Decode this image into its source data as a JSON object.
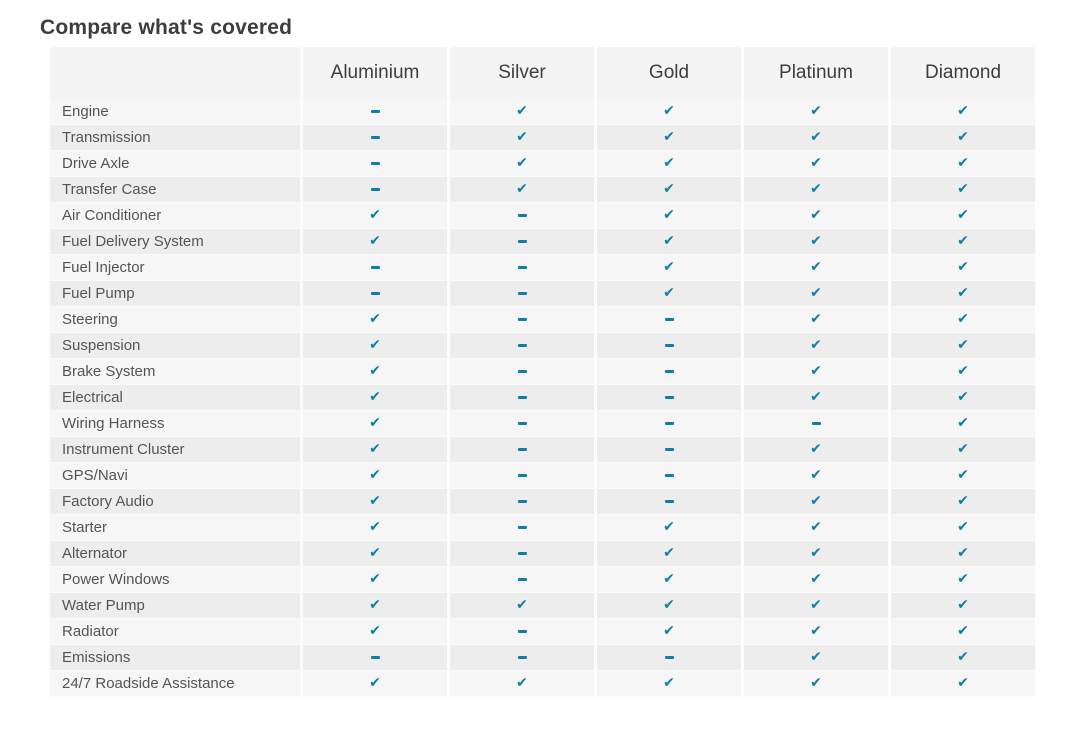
{
  "page_title": "Compare what's covered",
  "colors": {
    "accent_check": "#0e7ea6",
    "header_bg": "#f4f4f4",
    "row_odd": "#f6f6f6",
    "row_even": "#ededed"
  },
  "icon_glyphs": {
    "check": "✔"
  },
  "table": {
    "plans": [
      "Aluminium",
      "Silver",
      "Gold",
      "Platinum",
      "Diamond"
    ],
    "rows": [
      {
        "label": "Engine",
        "coverage": [
          "dash",
          "check",
          "check",
          "check",
          "check"
        ]
      },
      {
        "label": "Transmission",
        "coverage": [
          "dash",
          "check",
          "check",
          "check",
          "check"
        ]
      },
      {
        "label": "Drive Axle",
        "coverage": [
          "dash",
          "check",
          "check",
          "check",
          "check"
        ]
      },
      {
        "label": "Transfer Case",
        "coverage": [
          "dash",
          "check",
          "check",
          "check",
          "check"
        ]
      },
      {
        "label": "Air Conditioner",
        "coverage": [
          "check",
          "dash",
          "check",
          "check",
          "check"
        ]
      },
      {
        "label": "Fuel Delivery System",
        "coverage": [
          "check",
          "dash",
          "check",
          "check",
          "check"
        ]
      },
      {
        "label": "Fuel Injector",
        "coverage": [
          "dash",
          "dash",
          "check",
          "check",
          "check"
        ]
      },
      {
        "label": "Fuel Pump",
        "coverage": [
          "dash",
          "dash",
          "check",
          "check",
          "check"
        ]
      },
      {
        "label": "Steering",
        "coverage": [
          "check",
          "dash",
          "dash",
          "check",
          "check"
        ]
      },
      {
        "label": "Suspension",
        "coverage": [
          "check",
          "dash",
          "dash",
          "check",
          "check"
        ]
      },
      {
        "label": "Brake System",
        "coverage": [
          "check",
          "dash",
          "dash",
          "check",
          "check"
        ]
      },
      {
        "label": "Electrical",
        "coverage": [
          "check",
          "dash",
          "dash",
          "check",
          "check"
        ]
      },
      {
        "label": "Wiring Harness",
        "coverage": [
          "check",
          "dash",
          "dash",
          "dash",
          "check"
        ]
      },
      {
        "label": "Instrument Cluster",
        "coverage": [
          "check",
          "dash",
          "dash",
          "check",
          "check"
        ]
      },
      {
        "label": "GPS/Navi",
        "coverage": [
          "check",
          "dash",
          "dash",
          "check",
          "check"
        ]
      },
      {
        "label": "Factory Audio",
        "coverage": [
          "check",
          "dash",
          "dash",
          "check",
          "check"
        ]
      },
      {
        "label": "Starter",
        "coverage": [
          "check",
          "dash",
          "check",
          "check",
          "check"
        ]
      },
      {
        "label": "Alternator",
        "coverage": [
          "check",
          "dash",
          "check",
          "check",
          "check"
        ]
      },
      {
        "label": "Power Windows",
        "coverage": [
          "check",
          "dash",
          "check",
          "check",
          "check"
        ]
      },
      {
        "label": "Water Pump",
        "coverage": [
          "check",
          "check",
          "check",
          "check",
          "check"
        ]
      },
      {
        "label": "Radiator",
        "coverage": [
          "check",
          "dash",
          "check",
          "check",
          "check"
        ]
      },
      {
        "label": "Emissions",
        "coverage": [
          "dash",
          "dash",
          "dash",
          "check",
          "check"
        ]
      },
      {
        "label": "24/7 Roadside Assistance",
        "coverage": [
          "check",
          "check",
          "check",
          "check",
          "check"
        ]
      }
    ]
  }
}
